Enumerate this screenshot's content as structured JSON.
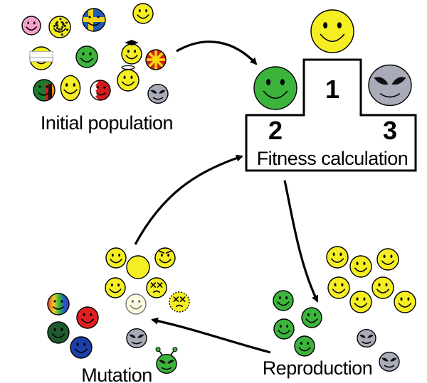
{
  "labels": {
    "initial_population": "Initial population",
    "fitness_calculation": "Fitness calculation",
    "reproduction": "Reproduction",
    "mutation": "Mutation"
  },
  "podium": {
    "first": "1",
    "second": "2",
    "third": "3"
  },
  "colors": {
    "yellow": "#f5ee23",
    "green": "#3cb43c",
    "alien": "#a9acb8",
    "red": "#e02020",
    "dark_green": "#1e5a2e",
    "blue": "#1c3fa8",
    "pink": "#f3a2c6",
    "sweden_blue": "#1f5bb5",
    "sweden_yellow": "#f7d117"
  },
  "icons": {
    "smiley": "smiley-face-icon",
    "alien": "alien-face-icon",
    "arrow": "curved-arrow-icon"
  }
}
